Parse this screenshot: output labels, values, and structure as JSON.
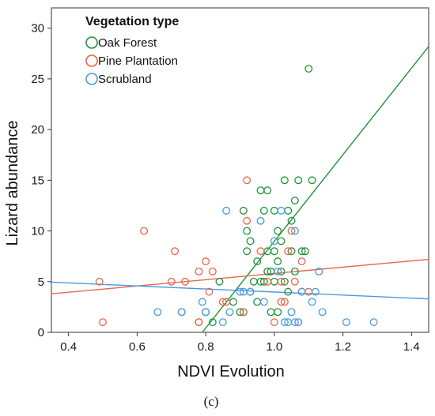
{
  "chart_data": {
    "type": "scatter",
    "title": "",
    "xlabel": "NDVI Evolution",
    "ylabel": "Lizard abundance",
    "xlim": [
      0.35,
      1.45
    ],
    "ylim": [
      0,
      32
    ],
    "xticks": [
      "0.4",
      "0.6",
      "0.8",
      "1.0",
      "1.2",
      "1.4"
    ],
    "yticks": [
      "0",
      "5",
      "10",
      "15",
      "20",
      "25",
      "30"
    ],
    "grid": false,
    "legend": {
      "title": "Vegetation type",
      "position": "top-left"
    },
    "panel_label": "(c)",
    "series": [
      {
        "name": "Oak Forest",
        "color": "#1e9438",
        "points": [
          [
            0.78,
            1
          ],
          [
            0.8,
            2
          ],
          [
            0.82,
            1
          ],
          [
            0.84,
            5
          ],
          [
            0.88,
            3
          ],
          [
            0.9,
            2
          ],
          [
            0.91,
            2
          ],
          [
            0.91,
            12
          ],
          [
            0.92,
            8
          ],
          [
            0.92,
            10
          ],
          [
            0.93,
            9
          ],
          [
            0.93,
            4
          ],
          [
            0.94,
            5
          ],
          [
            0.95,
            7
          ],
          [
            0.95,
            3
          ],
          [
            0.96,
            5
          ],
          [
            0.96,
            14
          ],
          [
            0.97,
            12
          ],
          [
            0.97,
            5
          ],
          [
            0.98,
            6
          ],
          [
            0.98,
            14
          ],
          [
            0.98,
            8
          ],
          [
            0.99,
            2
          ],
          [
            0.99,
            6
          ],
          [
            1.0,
            12
          ],
          [
            1.0,
            8
          ],
          [
            1.0,
            5
          ],
          [
            1.01,
            10
          ],
          [
            1.01,
            7
          ],
          [
            1.01,
            2
          ],
          [
            1.02,
            9
          ],
          [
            1.02,
            6
          ],
          [
            1.03,
            15
          ],
          [
            1.03,
            5
          ],
          [
            1.04,
            12
          ],
          [
            1.04,
            4
          ],
          [
            1.05,
            11
          ],
          [
            1.05,
            8
          ],
          [
            1.06,
            13
          ],
          [
            1.06,
            6
          ],
          [
            1.07,
            15
          ],
          [
            1.08,
            8
          ],
          [
            1.09,
            8
          ],
          [
            1.1,
            26
          ],
          [
            1.11,
            15
          ]
        ],
        "trend": [
          [
            0.79,
            0
          ],
          [
            1.45,
            28.2
          ]
        ]
      },
      {
        "name": "Pine Plantation",
        "color": "#e8664a",
        "points": [
          [
            0.49,
            5
          ],
          [
            0.5,
            1
          ],
          [
            0.62,
            10
          ],
          [
            0.7,
            5
          ],
          [
            0.71,
            8
          ],
          [
            0.73,
            2
          ],
          [
            0.74,
            5
          ],
          [
            0.78,
            6
          ],
          [
            0.78,
            1
          ],
          [
            0.8,
            7
          ],
          [
            0.81,
            4
          ],
          [
            0.82,
            6
          ],
          [
            0.85,
            3
          ],
          [
            0.86,
            3
          ],
          [
            0.91,
            2
          ],
          [
            0.92,
            15
          ],
          [
            0.92,
            11
          ],
          [
            0.96,
            8
          ],
          [
            0.98,
            5
          ],
          [
            1.0,
            1
          ],
          [
            1.02,
            5
          ],
          [
            1.02,
            3
          ],
          [
            1.03,
            3
          ],
          [
            1.04,
            8
          ],
          [
            1.05,
            10
          ],
          [
            1.06,
            5
          ],
          [
            1.07,
            1
          ],
          [
            1.08,
            7
          ],
          [
            1.08,
            4
          ],
          [
            1.1,
            4
          ]
        ],
        "trend": [
          [
            0.35,
            3.8
          ],
          [
            1.45,
            7.2
          ]
        ]
      },
      {
        "name": "Scrubland",
        "color": "#4a9be0",
        "points": [
          [
            0.66,
            2
          ],
          [
            0.73,
            2
          ],
          [
            0.79,
            3
          ],
          [
            0.8,
            2
          ],
          [
            0.85,
            1
          ],
          [
            0.86,
            12
          ],
          [
            0.87,
            2
          ],
          [
            0.9,
            4
          ],
          [
            0.91,
            4
          ],
          [
            0.93,
            4
          ],
          [
            0.96,
            11
          ],
          [
            0.97,
            3
          ],
          [
            1.0,
            9
          ],
          [
            1.01,
            6
          ],
          [
            1.02,
            12
          ],
          [
            1.03,
            1
          ],
          [
            1.04,
            1
          ],
          [
            1.05,
            2
          ],
          [
            1.06,
            10
          ],
          [
            1.06,
            1
          ],
          [
            1.07,
            1
          ],
          [
            1.08,
            4
          ],
          [
            1.11,
            3
          ],
          [
            1.12,
            4
          ],
          [
            1.13,
            6
          ],
          [
            1.14,
            2
          ],
          [
            1.21,
            1
          ],
          [
            1.29,
            1
          ]
        ],
        "trend": [
          [
            0.35,
            4.95
          ],
          [
            1.45,
            3.3
          ]
        ]
      }
    ]
  }
}
